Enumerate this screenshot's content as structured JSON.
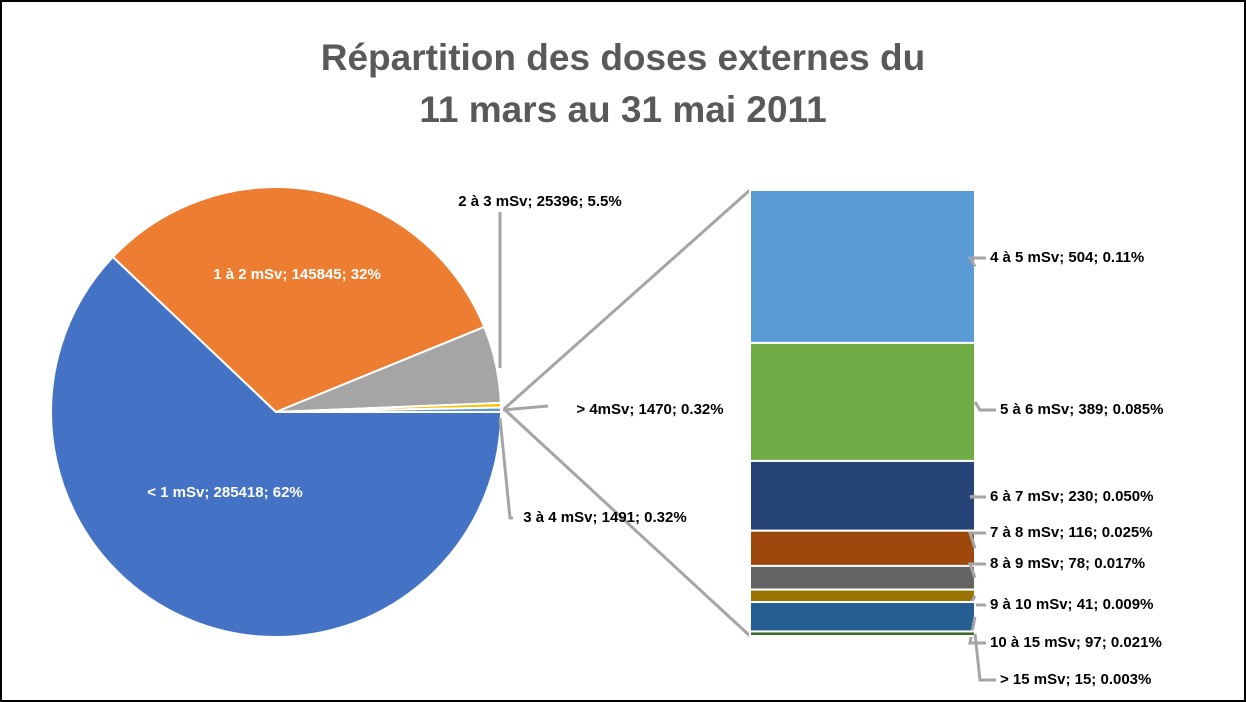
{
  "chart_data": {
    "type": "pie-of-bar",
    "title": [
      "Répartition des doses externes du",
      "11 mars au 31 mai 2011"
    ],
    "pie": {
      "values": [
        285418,
        145845,
        25396,
        1491,
        1470
      ],
      "value_labels": [
        "< 1 mSv; 285418; 62%",
        "1 à 2 mSv; 145845; 32%",
        "2 à 3 mSv; 25396; 5.5%",
        "3 à 4 mSv; 1491; 0.32%",
        "> 4mSv; 1470; 0.32%"
      ],
      "colors": [
        "#4472c4",
        "#ed7d31",
        "#a5a5a5",
        "#ffc000",
        "#5b9bd5"
      ]
    },
    "bar": {
      "values": [
        504,
        389,
        230,
        116,
        78,
        41,
        97,
        15
      ],
      "value_labels": [
        "4 à 5 mSv; 504; 0.11%",
        "5 à 6 mSv; 389; 0.085%",
        "6 à 7 mSv; 230; 0.050%",
        "7 à 8 mSv; 116; 0.025%",
        "8 à 9 mSv; 78; 0.017%",
        "9 à 10 mSv; 41; 0.009%",
        "10 à 15 mSv; 97; 0.021%",
        "> 15 mSv; 15; 0.003%"
      ],
      "colors": [
        "#5b9bd5",
        "#70ad47",
        "#264478",
        "#9e480e",
        "#636363",
        "#997300",
        "#255e91",
        "#43682b"
      ]
    }
  }
}
